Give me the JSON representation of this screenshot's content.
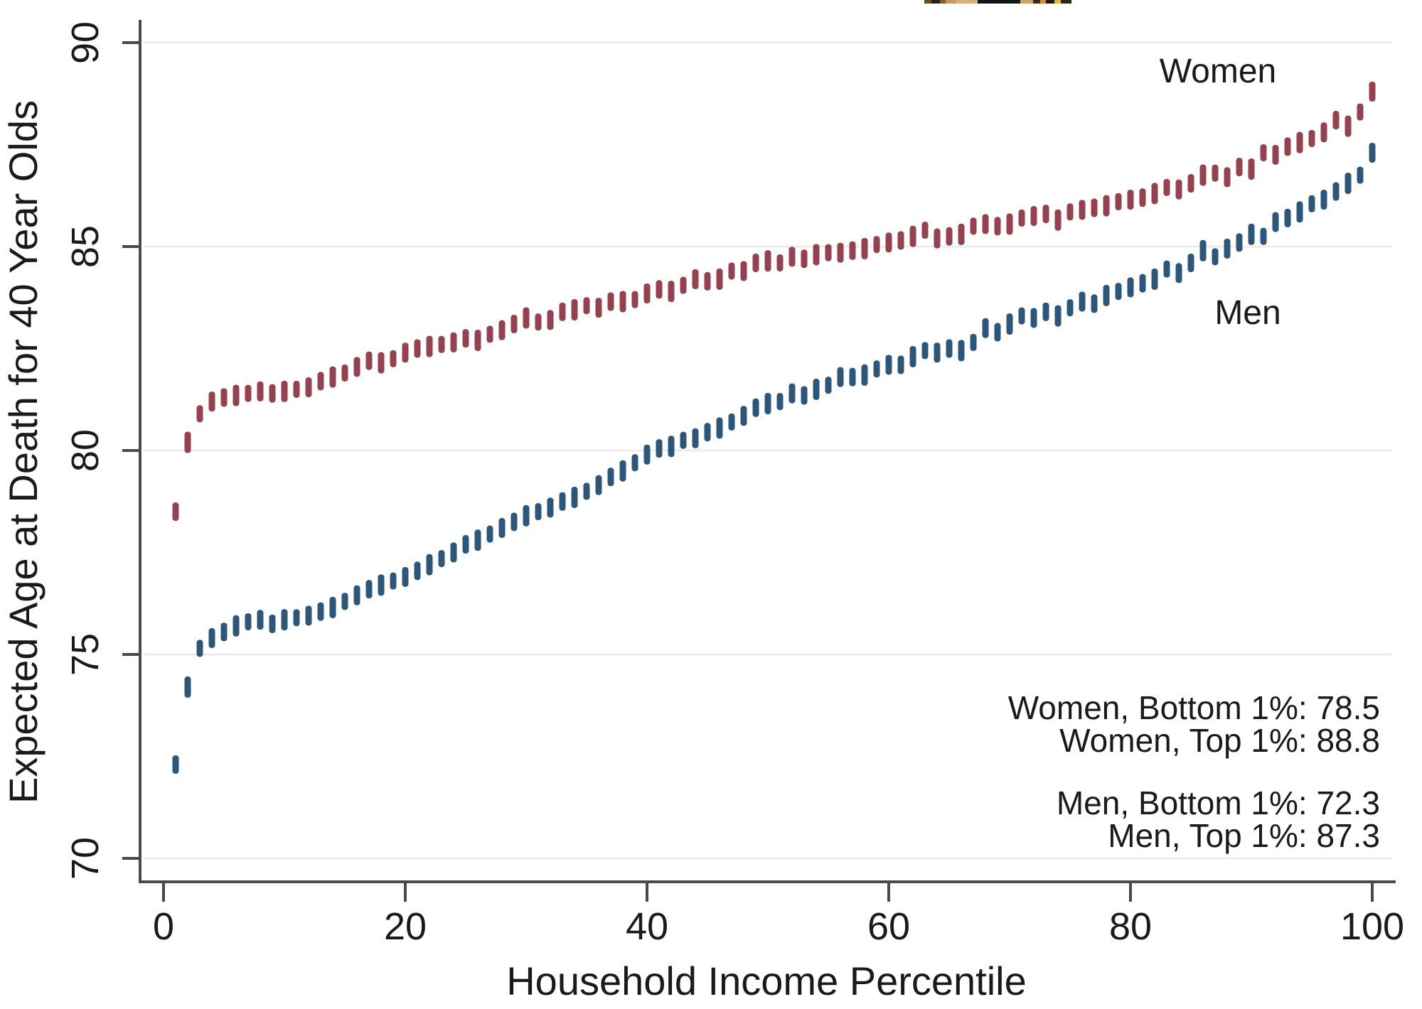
{
  "chart_data": {
    "type": "scatter",
    "marker": "vertical-dash",
    "xlabel": "Household Income Percentile",
    "ylabel": "Expected Age at Death for 40 Year Olds",
    "xlim": [
      0,
      100
    ],
    "ylim": [
      69.4,
      90.5
    ],
    "x_ticks": [
      0,
      20,
      40,
      60,
      80,
      100
    ],
    "y_ticks": [
      70,
      75,
      80,
      85,
      90
    ],
    "grid": "horizontal",
    "legend_position": "inline-labels",
    "colors": {
      "women_marker": "#8e3342",
      "women_label": "#a03a4e",
      "men_marker": "#1d4a70",
      "men_label": "#2f618f",
      "axis": "#4a4a4a",
      "gridline": "#ececec",
      "text": "#1a1a1a"
    },
    "series": [
      {
        "name": "Women",
        "x": [
          1,
          2,
          3,
          4,
          5,
          6,
          7,
          8,
          9,
          10,
          11,
          12,
          13,
          14,
          15,
          16,
          17,
          18,
          19,
          20,
          21,
          22,
          23,
          24,
          25,
          26,
          27,
          28,
          29,
          30,
          31,
          32,
          33,
          34,
          35,
          36,
          37,
          38,
          39,
          40,
          41,
          42,
          43,
          44,
          45,
          46,
          47,
          48,
          49,
          50,
          51,
          52,
          53,
          54,
          55,
          56,
          57,
          58,
          59,
          60,
          61,
          62,
          63,
          64,
          65,
          66,
          67,
          68,
          69,
          70,
          71,
          72,
          73,
          74,
          75,
          76,
          77,
          78,
          79,
          80,
          81,
          82,
          83,
          84,
          85,
          86,
          87,
          88,
          89,
          90,
          91,
          92,
          93,
          94,
          95,
          96,
          97,
          98,
          99,
          100
        ],
        "values": [
          78.5,
          80.2,
          80.9,
          81.2,
          81.3,
          81.35,
          81.4,
          81.45,
          81.4,
          81.45,
          81.5,
          81.55,
          81.7,
          81.8,
          81.9,
          82.05,
          82.2,
          82.15,
          82.25,
          82.4,
          82.5,
          82.55,
          82.6,
          82.65,
          82.75,
          82.7,
          82.85,
          82.95,
          83.1,
          83.25,
          83.15,
          83.2,
          83.4,
          83.45,
          83.55,
          83.5,
          83.65,
          83.65,
          83.7,
          83.85,
          83.95,
          83.9,
          84.05,
          84.2,
          84.15,
          84.2,
          84.4,
          84.4,
          84.6,
          84.65,
          84.6,
          84.75,
          84.7,
          84.8,
          84.85,
          84.85,
          84.9,
          84.95,
          85.05,
          85.1,
          85.15,
          85.25,
          85.4,
          85.2,
          85.25,
          85.3,
          85.5,
          85.55,
          85.5,
          85.55,
          85.7,
          85.75,
          85.8,
          85.65,
          85.85,
          85.9,
          85.95,
          86.0,
          86.1,
          86.15,
          86.2,
          86.3,
          86.45,
          86.4,
          86.55,
          86.75,
          86.8,
          86.7,
          86.95,
          86.9,
          87.3,
          87.25,
          87.45,
          87.55,
          87.65,
          87.8,
          88.1,
          87.95,
          88.3,
          88.8
        ]
      },
      {
        "name": "Men",
        "x": [
          1,
          2,
          3,
          4,
          5,
          6,
          7,
          8,
          9,
          10,
          11,
          12,
          13,
          14,
          15,
          16,
          17,
          18,
          19,
          20,
          21,
          22,
          23,
          24,
          25,
          26,
          27,
          28,
          29,
          30,
          31,
          32,
          33,
          34,
          35,
          36,
          37,
          38,
          39,
          40,
          41,
          42,
          43,
          44,
          45,
          46,
          47,
          48,
          49,
          50,
          51,
          52,
          53,
          54,
          55,
          56,
          57,
          58,
          59,
          60,
          61,
          62,
          63,
          64,
          65,
          66,
          67,
          68,
          69,
          70,
          71,
          72,
          73,
          74,
          75,
          76,
          77,
          78,
          79,
          80,
          81,
          82,
          83,
          84,
          85,
          86,
          87,
          88,
          89,
          90,
          91,
          92,
          93,
          94,
          95,
          96,
          97,
          98,
          99,
          100
        ],
        "values": [
          72.3,
          74.2,
          75.15,
          75.4,
          75.55,
          75.7,
          75.8,
          75.85,
          75.75,
          75.85,
          75.9,
          75.95,
          76.05,
          76.15,
          76.3,
          76.45,
          76.6,
          76.7,
          76.8,
          76.9,
          77.05,
          77.2,
          77.35,
          77.5,
          77.7,
          77.8,
          77.95,
          78.1,
          78.25,
          78.4,
          78.5,
          78.6,
          78.75,
          78.85,
          79.0,
          79.15,
          79.35,
          79.5,
          79.7,
          79.9,
          80.05,
          80.1,
          80.25,
          80.3,
          80.45,
          80.55,
          80.7,
          80.85,
          81.05,
          81.15,
          81.2,
          81.4,
          81.35,
          81.5,
          81.6,
          81.8,
          81.8,
          81.85,
          82.0,
          82.1,
          82.1,
          82.3,
          82.45,
          82.4,
          82.5,
          82.45,
          82.65,
          83.0,
          82.9,
          83.1,
          83.3,
          83.25,
          83.4,
          83.3,
          83.5,
          83.65,
          83.6,
          83.8,
          83.9,
          84.0,
          84.1,
          84.2,
          84.45,
          84.35,
          84.6,
          84.9,
          84.75,
          84.95,
          85.1,
          85.3,
          85.25,
          85.6,
          85.7,
          85.85,
          86.05,
          86.15,
          86.35,
          86.55,
          86.75,
          87.3
        ]
      }
    ],
    "annotations": {
      "women_bottom": "Women, Bottom 1%: 78.5",
      "women_top": "Women, Top 1%: 88.8",
      "men_bottom": "Men, Bottom 1%: 72.3",
      "men_top": "Men, Top 1%: 87.3"
    }
  },
  "artifact_strip": {
    "description": "partial image fragment cut off at top edge",
    "colors": [
      "#6b4a2a",
      "#2a2118",
      "#8a5a28",
      "#c49a62",
      "#d6b27c",
      "#151515",
      "#c9a568",
      "#3a2c1a",
      "#d98d2e",
      "#201a12",
      "#e0b23e",
      "#2e2418"
    ],
    "widths": [
      10,
      12,
      8,
      15,
      30,
      60,
      18,
      10,
      8,
      12,
      9,
      15
    ]
  }
}
